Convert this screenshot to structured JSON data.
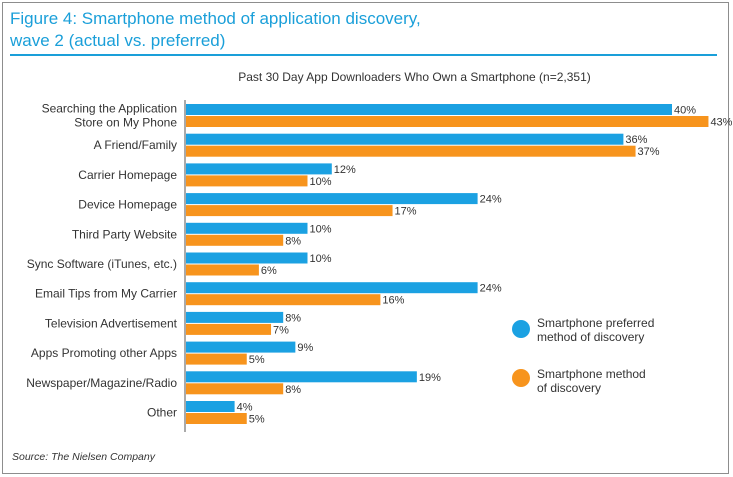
{
  "figure": {
    "title_line1": "Figure 4: Smartphone method of application discovery,",
    "title_line2": "wave 2 (actual vs. preferred)",
    "source": "Source: The Nielsen Company"
  },
  "colors": {
    "preferred": "#1ba1e2",
    "actual": "#f7941d",
    "title": "#1a9fd9"
  },
  "chart_data": {
    "type": "bar",
    "orientation": "horizontal",
    "title": "Past 30 Day App Downloaders Who Own a Smartphone (n=2,351)",
    "categories": [
      [
        "Searching the Application",
        "Store on My Phone"
      ],
      [
        "A Friend/Family"
      ],
      [
        "Carrier Homepage"
      ],
      [
        "Device Homepage"
      ],
      [
        "Third Party Website"
      ],
      [
        "Sync Software (iTunes, etc.)"
      ],
      [
        "Email Tips from My Carrier"
      ],
      [
        "Television Advertisement"
      ],
      [
        "Apps Promoting other Apps"
      ],
      [
        "Newspaper/Magazine/Radio"
      ],
      [
        "Other"
      ]
    ],
    "series": [
      {
        "name": [
          "Smartphone preferred",
          "method of discovery"
        ],
        "color": "#1ba1e2",
        "values": [
          40,
          36,
          12,
          24,
          10,
          10,
          24,
          8,
          9,
          19,
          4
        ]
      },
      {
        "name": [
          "Smartphone method",
          "of discovery"
        ],
        "color": "#f7941d",
        "values": [
          43,
          37,
          10,
          17,
          8,
          6,
          16,
          7,
          5,
          8,
          5
        ]
      }
    ],
    "value_suffix": "%",
    "xlim": [
      0,
      45
    ],
    "legend": "right"
  }
}
